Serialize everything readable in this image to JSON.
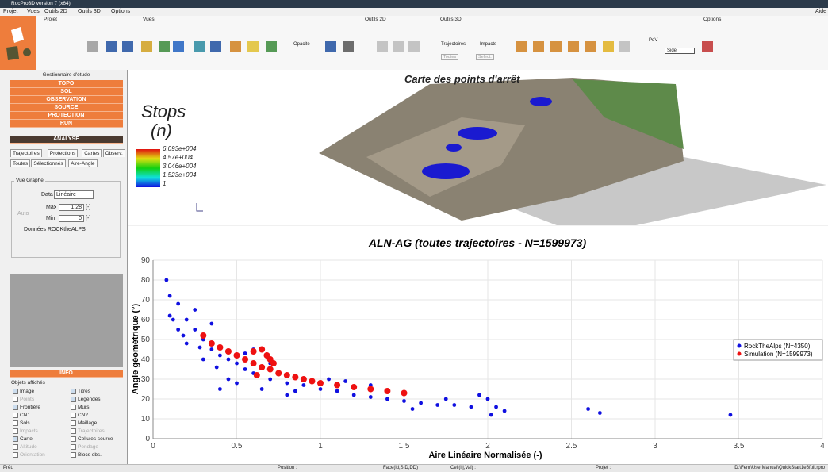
{
  "window": {
    "title": "RocPro3D version 7 (x64)"
  },
  "menu": {
    "items": [
      "Projet",
      "Vues",
      "Outils 2D",
      "Outils 3D",
      "Options"
    ],
    "help": "Aide"
  },
  "toolbar": {
    "groups": [
      "Projet",
      "Vues",
      "Outils 2D",
      "Outils 3D",
      "Options"
    ],
    "opacity": "Opacité",
    "trajectories": "Trajectoires",
    "impacts": "Impacts",
    "pdv": "PdV",
    "side": "Side",
    "all": "Toutes",
    "select": "Select."
  },
  "sidebar": {
    "title": "Gestionnaire d'étude",
    "sections": [
      "TOPO",
      "SOL",
      "OBSERVATION",
      "SOURCE",
      "PROTECTION",
      "RUN"
    ],
    "active": "ANALYSE",
    "tabs": [
      "Trajectoires",
      "Protections",
      "Cartes",
      "Observ."
    ],
    "subtabs": [
      "Toutes",
      "Sélectionnés",
      "Aire-Angle"
    ],
    "graph": {
      "title": "Vue Graphe",
      "data_label": "Data",
      "data_value": "Linéaire",
      "auto": "Auto",
      "max_label": "Max",
      "max_value": "1.28",
      "min_label": "Min",
      "min_value": "0",
      "unit": "[-]",
      "rockthealps": "Données ROCKtheALPS"
    },
    "info": "INFO",
    "objects": {
      "title": "Objets affichés",
      "items": [
        {
          "label": "Image",
          "checked": true,
          "enabled": true
        },
        {
          "label": "Titres",
          "checked": true,
          "enabled": true
        },
        {
          "label": "Points",
          "checked": false,
          "enabled": false
        },
        {
          "label": "Légendes",
          "checked": true,
          "enabled": true
        },
        {
          "label": "Frontière",
          "checked": true,
          "enabled": true
        },
        {
          "label": "Murs",
          "checked": false,
          "enabled": true
        },
        {
          "label": "CN1",
          "checked": false,
          "enabled": true
        },
        {
          "label": "CN2",
          "checked": false,
          "enabled": true
        },
        {
          "label": "Sols",
          "checked": false,
          "enabled": true
        },
        {
          "label": "Maillage",
          "checked": false,
          "enabled": true
        },
        {
          "label": "Impacts",
          "checked": false,
          "enabled": false
        },
        {
          "label": "Trajectoires",
          "checked": false,
          "enabled": false
        },
        {
          "label": "Carte",
          "checked": true,
          "enabled": true
        },
        {
          "label": "Cellules source",
          "checked": false,
          "enabled": true
        },
        {
          "label": "Altitude",
          "checked": false,
          "enabled": false
        },
        {
          "label": "Pendage",
          "checked": false,
          "enabled": false
        },
        {
          "label": "Orientation",
          "checked": false,
          "enabled": false
        },
        {
          "label": "Blocs obs.",
          "checked": false,
          "enabled": true
        }
      ]
    }
  },
  "view3d": {
    "title": "Carte des points d'arrêt",
    "legend_title": "Stops",
    "legend_unit": "(n)",
    "colorbar_labels": [
      "6.093e+004",
      "4.57e+004",
      "3.046e+004",
      "1.523e+004",
      "1"
    ]
  },
  "chart_data": {
    "type": "scatter",
    "title": "ALN-AG (toutes trajectoires - N=1599973)",
    "x_label": "Aire Linéaire Normalisée (-)",
    "y_label": "Angle géométrique (°)",
    "xlim": [
      0,
      4
    ],
    "xticks": [
      0,
      0.5,
      1,
      1.5,
      2,
      2.5,
      3,
      3.5,
      4
    ],
    "ylim": [
      0,
      90
    ],
    "yticks": [
      0,
      10,
      20,
      30,
      40,
      50,
      60,
      70,
      80,
      90
    ],
    "grid": true,
    "legend": "right",
    "series": [
      {
        "name": "RockTheAlps (N=4350)",
        "color": "#1010e0",
        "x": [
          0.08,
          0.1,
          0.1,
          0.15,
          0.2,
          0.25,
          0.3,
          0.35,
          0.4,
          0.45,
          0.5,
          0.55,
          0.6,
          0.7,
          0.8,
          0.9,
          1.0,
          1.1,
          1.2,
          1.3,
          1.4,
          1.5,
          1.6,
          1.7,
          1.8,
          1.9,
          2.0,
          2.05,
          2.1,
          2.6,
          2.67,
          3.45,
          0.2,
          0.3,
          0.4,
          0.5,
          0.45,
          0.7,
          0.6,
          1.05,
          1.3,
          0.25,
          0.15,
          0.35,
          0.8,
          1.55,
          1.75,
          2.02,
          1.95,
          0.55,
          0.65,
          0.12,
          0.18,
          0.28,
          0.38,
          0.85,
          1.15
        ],
        "values": [
          80,
          72,
          62,
          68,
          60,
          55,
          50,
          45,
          42,
          40,
          38,
          35,
          33,
          30,
          28,
          27,
          25,
          24,
          22,
          21,
          20,
          19,
          18,
          17,
          17,
          16,
          20,
          16,
          14,
          15,
          13,
          12,
          48,
          40,
          25,
          28,
          30,
          38,
          45,
          30,
          27,
          65,
          55,
          58,
          22,
          15,
          20,
          12,
          22,
          43,
          25,
          60,
          52,
          46,
          36,
          24,
          29
        ]
      },
      {
        "name": "Simulation (N=1599973)",
        "color": "#ee1111",
        "x": [
          0.3,
          0.35,
          0.4,
          0.45,
          0.5,
          0.55,
          0.6,
          0.6,
          0.65,
          0.65,
          0.7,
          0.7,
          0.75,
          0.8,
          0.85,
          0.9,
          0.95,
          1.0,
          1.1,
          1.2,
          1.3,
          1.4,
          1.5,
          0.62,
          0.68,
          0.72
        ],
        "values": [
          52,
          48,
          46,
          44,
          42,
          40,
          44,
          38,
          45,
          36,
          40,
          35,
          33,
          32,
          31,
          30,
          29,
          28,
          27,
          26,
          25,
          24,
          23,
          32,
          42,
          38
        ]
      }
    ]
  },
  "status": {
    "ready": "Prêt.",
    "position": "Position :",
    "face": "Face(id,S,D,DD) :",
    "cell": "Cell(i,j,Val) :",
    "project": "Projet :",
    "path": "D:\\Fern\\UserManual\\QuickStart1e6full.rpro"
  }
}
